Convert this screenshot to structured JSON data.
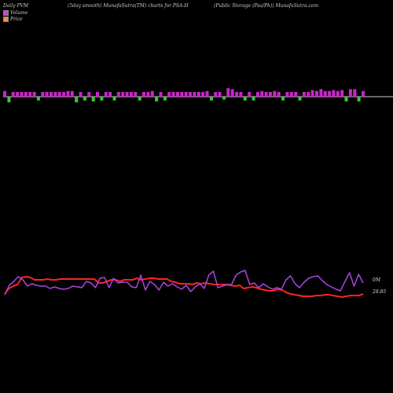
{
  "header": {
    "left": "Daily PVM",
    "mid": "(5day smooth) MunafaSutra(TM) charts for PSA-H",
    "right": "(Public Storage  (Psa/Ph)) MunafaSutra.com"
  },
  "legend": [
    {
      "label": "Volume",
      "color": "#cc44cc"
    },
    {
      "label": "Price",
      "color": "#ff8844"
    }
  ],
  "colors": {
    "up_bar": "#cc22cc",
    "down_bar": "#33cc33",
    "price_line": "#ff2222",
    "volume_line": "#aa44dd",
    "axis_line": "#cccccc"
  },
  "chart_data": {
    "type": "line",
    "bars": {
      "type": "bar",
      "values": [
        6,
        -6,
        5,
        5,
        5,
        5,
        5,
        5,
        -4,
        5,
        5,
        5,
        5,
        5,
        5,
        6,
        6,
        -6,
        5,
        -4,
        5,
        -5,
        5,
        -4,
        5,
        5,
        -4,
        5,
        5,
        5,
        5,
        5,
        -4,
        5,
        5,
        6,
        -5,
        5,
        -4,
        5,
        5,
        5,
        5,
        5,
        5,
        5,
        5,
        5,
        6,
        -4,
        5,
        5,
        -3,
        9,
        8,
        5,
        5,
        -4,
        5,
        -4,
        5,
        6,
        5,
        5,
        6,
        5,
        -4,
        5,
        5,
        5,
        -4,
        5,
        5,
        7,
        6,
        8,
        6,
        6,
        7,
        6,
        7,
        -5,
        8,
        8,
        -5,
        6
      ]
    },
    "series": [
      {
        "name": "Volume",
        "values": [
          375,
          363,
          358,
          352,
          356,
          364,
          361,
          363,
          364,
          364,
          367,
          365,
          367,
          368,
          367,
          364,
          365,
          366,
          358,
          360,
          366,
          354,
          353,
          366,
          354,
          360,
          359,
          359,
          365,
          366,
          350,
          369,
          358,
          362,
          369,
          359,
          364,
          361,
          365,
          368,
          363,
          371,
          365,
          361,
          367,
          350,
          345,
          366,
          364,
          362,
          362,
          350,
          346,
          344,
          362,
          360,
          366,
          361,
          365,
          368,
          366,
          368,
          356,
          351,
          361,
          366,
          359,
          354,
          352,
          351,
          357,
          362,
          365,
          368,
          370,
          358,
          347,
          364,
          349,
          360
        ]
      },
      {
        "name": "Price",
        "values": [
          374,
          367,
          364,
          362,
          353,
          352,
          353,
          356,
          356,
          356,
          355,
          356,
          356,
          355,
          355,
          355,
          355,
          355,
          355,
          355,
          355,
          355,
          360,
          360,
          358,
          356,
          356,
          358,
          356,
          356,
          356,
          354,
          356,
          355,
          354,
          354,
          355,
          355,
          355,
          358,
          359,
          361,
          361,
          361,
          362,
          360,
          361,
          360,
          361,
          362,
          362,
          362,
          362,
          363,
          364,
          363,
          367,
          366,
          365,
          366,
          368,
          369,
          370,
          370,
          368,
          369,
          372,
          374,
          375,
          376,
          377,
          377,
          377,
          376,
          376,
          375,
          375,
          376,
          377,
          378,
          377,
          376,
          376,
          376,
          374
        ]
      }
    ],
    "y_labels": {
      "volume": "0M",
      "price": "28.85"
    }
  }
}
